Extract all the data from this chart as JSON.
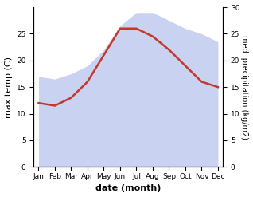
{
  "months": [
    "Jan",
    "Feb",
    "Mar",
    "Apr",
    "May",
    "Jun",
    "Jul",
    "Aug",
    "Sep",
    "Oct",
    "Nov",
    "Dec"
  ],
  "max_temp": [
    12,
    11.5,
    13,
    16,
    21,
    26,
    26,
    24.5,
    22,
    19,
    16,
    15
  ],
  "precipitation": [
    17,
    16.5,
    17.5,
    19,
    22,
    26.5,
    29,
    29,
    27.5,
    26,
    25,
    23.5
  ],
  "temp_color": "#c0392b",
  "precip_fill_color": "#c5cdf0",
  "precip_fill_alpha": 0.9,
  "temp_ylim": [
    0,
    30
  ],
  "precip_ylim": [
    0,
    30
  ],
  "temp_yticks": [
    0,
    5,
    10,
    15,
    20,
    25
  ],
  "precip_yticks": [
    0,
    5,
    10,
    15,
    20,
    25,
    30
  ],
  "ylabel_left": "max temp (C)",
  "ylabel_right": "med. precipitation (kg/m2)",
  "xlabel": "date (month)",
  "temp_linewidth": 1.8,
  "ylabel_left_fontsize": 8,
  "ylabel_right_fontsize": 7,
  "xlabel_fontsize": 8,
  "tick_fontsize": 6.5
}
